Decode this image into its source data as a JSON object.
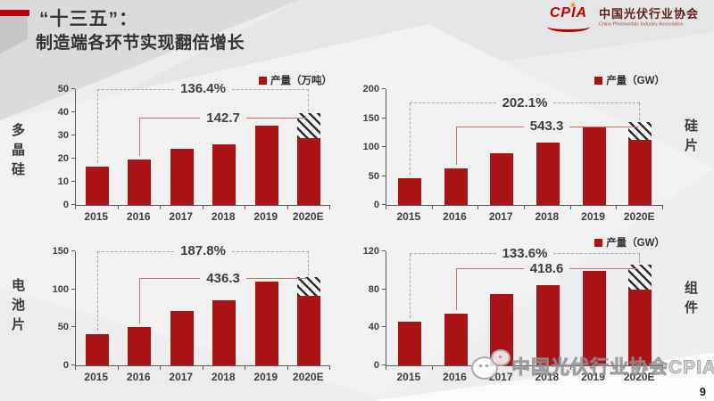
{
  "slide": {
    "title": "“十三五”：",
    "subtitle": "制造端各环节实现翻倍增长",
    "page_number": "9",
    "watermark_text": "中国光伏行业协会CPIA"
  },
  "logo": {
    "acronym": "CPIA",
    "name_cn": "中国光伏行业协会",
    "name_en": "China Photovoltaic Industry Association"
  },
  "colors": {
    "bar_red": "#AB1417",
    "accent_red": "#C00000",
    "dashed_bracket": "#A8A8A8",
    "solid_bracket": "#C1786E",
    "annotation_text": "#3F3F3F",
    "background": "#ECECED"
  },
  "chart_data": [
    {
      "id": "polysilicon",
      "type": "bar",
      "side_label": "多晶硅",
      "legend": "产量（万吨）",
      "unit": "万吨",
      "categories": [
        "2015",
        "2016",
        "2017",
        "2018",
        "2019",
        "2020E"
      ],
      "values": [
        16.5,
        19.5,
        24.2,
        26,
        34.2
      ],
      "forecast_solid": 29,
      "forecast_total": 39.5,
      "growth_label": "136.4%",
      "cumulative_label": "142.7",
      "yticks": [
        0,
        10,
        20,
        30,
        40,
        50
      ],
      "ylim": [
        0,
        50
      ],
      "legend_position": "top-right",
      "grid": false
    },
    {
      "id": "silicon-wafer",
      "type": "bar",
      "side_label": "硅片",
      "legend": "产量（GW）",
      "unit": "GW",
      "categories": [
        "2015",
        "2016",
        "2017",
        "2018",
        "2019",
        "2020E"
      ],
      "values": [
        46,
        63,
        90,
        107,
        134
      ],
      "forecast_solid": 113,
      "forecast_total": 143,
      "growth_label": "202.1%",
      "cumulative_label": "543.3",
      "yticks": [
        0,
        50,
        100,
        150,
        200
      ],
      "ylim": [
        0,
        200
      ],
      "legend_position": "top-right",
      "grid": false
    },
    {
      "id": "solar-cell",
      "type": "bar",
      "side_label": "电池片",
      "legend": null,
      "unit": "GW",
      "categories": [
        "2015",
        "2016",
        "2017",
        "2018",
        "2019",
        "2020E"
      ],
      "values": [
        41,
        50,
        72,
        85,
        110
      ],
      "forecast_solid": 92,
      "forecast_total": 116,
      "growth_label": "187.8%",
      "cumulative_label": "436.3",
      "yticks": [
        0,
        50,
        100,
        150
      ],
      "ylim": [
        0,
        150
      ],
      "legend_position": "none",
      "grid": false
    },
    {
      "id": "module",
      "type": "bar",
      "side_label": "组件",
      "legend": "产量（GW）",
      "unit": "GW",
      "categories": [
        "2015",
        "2016",
        "2017",
        "2018",
        "2019",
        "2020E"
      ],
      "values": [
        46,
        54,
        75,
        84,
        99
      ],
      "forecast_solid": 80,
      "forecast_total": 106,
      "growth_label": "133.6%",
      "cumulative_label": "418.6",
      "yticks": [
        0,
        40,
        80,
        120
      ],
      "ylim": [
        0,
        120
      ],
      "legend_position": "top-right",
      "grid": false
    }
  ]
}
